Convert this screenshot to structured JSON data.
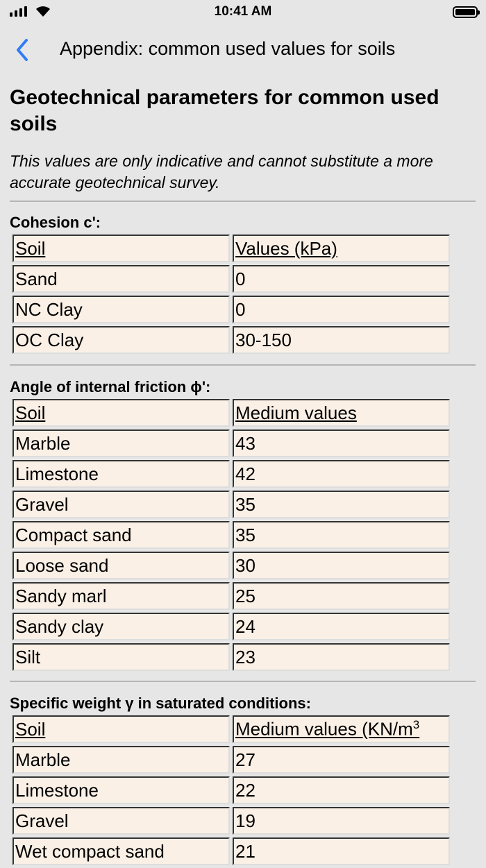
{
  "status": {
    "time": "10:41 AM"
  },
  "nav": {
    "title": "Appendix: common used values for soils",
    "back_icon": "chevron-left-icon",
    "accent": "#2f7cf6"
  },
  "page": {
    "title": "Geotechnical parameters for common used soils",
    "note": "This values are only indicative and cannot substitute a more accurate geotechnical survey."
  },
  "cohesion": {
    "heading": "Cohesion c':",
    "headers": [
      "Soil",
      "Values (kPa)"
    ],
    "rows": [
      [
        "Sand",
        "0"
      ],
      [
        "NC Clay",
        "0"
      ],
      [
        "OC Clay",
        "30-150"
      ]
    ]
  },
  "friction": {
    "heading": "Angle of internal friction ϕ':",
    "headers": [
      "Soil",
      "Medium values"
    ],
    "rows": [
      [
        "Marble",
        "43"
      ],
      [
        "Limestone",
        "42"
      ],
      [
        "Gravel",
        "35"
      ],
      [
        "Compact sand",
        "35"
      ],
      [
        "Loose sand",
        "30"
      ],
      [
        "Sandy marl",
        "25"
      ],
      [
        "Sandy clay",
        "24"
      ],
      [
        "Silt",
        "23"
      ]
    ]
  },
  "weight": {
    "heading": "Specific weight γ in saturated conditions:",
    "headers": [
      "Soil",
      "Medium values (KN/m"
    ],
    "header_sup": "3",
    "rows": [
      [
        "Marble",
        "27"
      ],
      [
        "Limestone",
        "22"
      ],
      [
        "Gravel",
        "19"
      ],
      [
        "Wet compact sand",
        "21"
      ]
    ]
  }
}
